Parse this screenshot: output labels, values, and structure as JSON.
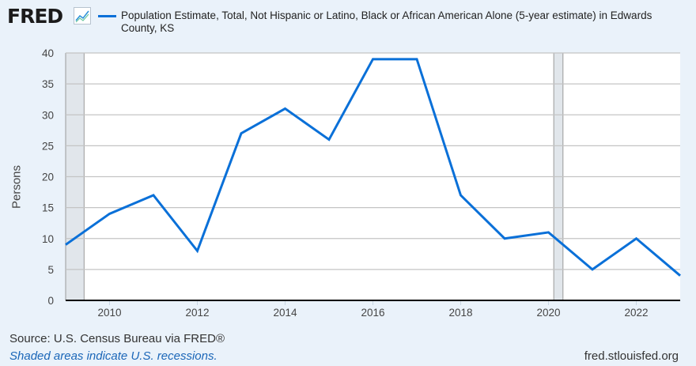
{
  "header": {
    "logo_text": "FRED",
    "logo_icon": "line-chart-icon",
    "title": "Population Estimate, Total, Not Hispanic or Latino, Black or African American Alone (5-year estimate) in Edwards County, KS"
  },
  "footer": {
    "source": "Source: U.S. Census Bureau via FRED®",
    "note": "Shaded areas indicate U.S. recessions.",
    "url": "fred.stlouisfed.org"
  },
  "colors": {
    "series": "#0a70d8",
    "recession": "#e1e6eb",
    "background": "#eaf2fa"
  },
  "chart_data": {
    "type": "line",
    "title": "Population Estimate, Total, Not Hispanic or Latino, Black or African American Alone (5-year estimate) in Edwards County, KS",
    "xlabel": "",
    "ylabel": "Persons",
    "ylim": [
      0,
      40
    ],
    "yticks": [
      "0",
      "5",
      "10",
      "15",
      "20",
      "25",
      "30",
      "35",
      "40"
    ],
    "xlim": [
      2009,
      2023
    ],
    "xticks": [
      "2010",
      "2012",
      "2014",
      "2016",
      "2018",
      "2020",
      "2022"
    ],
    "grid": true,
    "recessions": [
      [
        2009.0,
        2009.42
      ],
      [
        2020.12,
        2020.33
      ]
    ],
    "series": [
      {
        "name": "Population Estimate, Total, Not Hispanic or Latino, Black or African American Alone (5-year estimate) in Edwards County, KS",
        "x": [
          2009,
          2010,
          2011,
          2012,
          2013,
          2014,
          2015,
          2016,
          2017,
          2018,
          2019,
          2020,
          2021,
          2022,
          2023
        ],
        "values": [
          9,
          14,
          17,
          8,
          27,
          31,
          26,
          39,
          39,
          17,
          10,
          11,
          5,
          10,
          4
        ]
      }
    ]
  }
}
